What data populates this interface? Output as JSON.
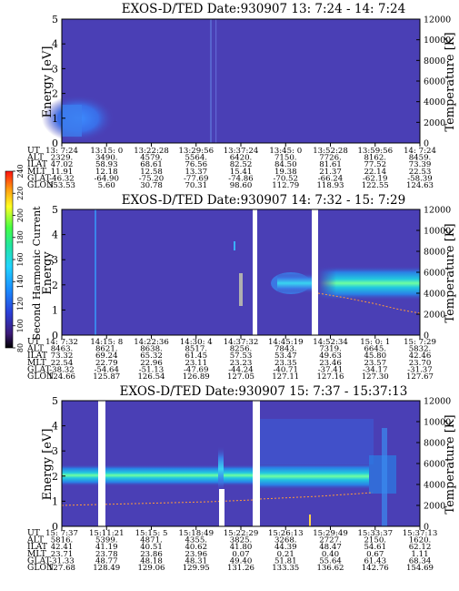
{
  "chart_data": [
    {
      "type": "heatmap",
      "title": "EXOS-D/TED   Date:930907  13: 7:24 - 14: 7:24",
      "ylabel": "Energy [eV]",
      "y2label": "Temperature [K]",
      "ylim": [
        0,
        5
      ],
      "y2lim": [
        0,
        12000
      ],
      "yticks": [
        "0",
        "1",
        "2",
        "3",
        "4",
        "5"
      ],
      "y2ticks": [
        "0",
        "2000",
        "4000",
        "6000",
        "8000",
        "10000",
        "12000"
      ],
      "row_labels": [
        "UT",
        "ALT",
        "ILAT",
        "MLT",
        "GLAT",
        "GLON"
      ],
      "columns": [
        [
          "13: 7:24",
          "2329.",
          "47.02",
          "11.91",
          "-46.32",
          "353.53"
        ],
        [
          "13:15: 0",
          "3490.",
          "58.93",
          "12.18",
          "-64.90",
          "5.60"
        ],
        [
          "13:22:28",
          "4579.",
          "68.61",
          "12.58",
          "-75.20",
          "30.78"
        ],
        [
          "13:29:56",
          "5564.",
          "76.56",
          "13.37",
          "-77.69",
          "70.31"
        ],
        [
          "13:37:24",
          "6420.",
          "82.52",
          "15.41",
          "-74.86",
          "98.60"
        ],
        [
          "13:45: 0",
          "7150.",
          "84.50",
          "19.38",
          "-70.52",
          "112.79"
        ],
        [
          "13:52:28",
          "7726.",
          "81.61",
          "21.37",
          "-66.24",
          "118.93"
        ],
        [
          "13:59:56",
          "8162.",
          "77.52",
          "22.14",
          "-62.19",
          "122.55"
        ],
        [
          "14: 7:24",
          "8459.",
          "73.39",
          "22.53",
          "-58.39",
          "124.63"
        ]
      ]
    },
    {
      "type": "heatmap",
      "title": "EXOS-D/TED   Date:930907  14: 7:32 - 15: 7:29",
      "ylabel": "Energy",
      "y2label": "Temperature [K]",
      "ylim": [
        0,
        5
      ],
      "y2lim": [
        0,
        12000
      ],
      "yticks": [
        "0",
        "1",
        "2",
        "3",
        "4",
        "5"
      ],
      "y2ticks": [
        "0",
        "2000",
        "4000",
        "6000",
        "8000",
        "10000",
        "12000"
      ],
      "colorbar": {
        "label": "Second Harmonic Current",
        "ticks": [
          "80",
          "100",
          "120",
          "140",
          "160",
          "180",
          "200",
          "220",
          "240"
        ]
      },
      "row_labels": [
        "UT",
        "ALT",
        "ILAT",
        "MLT",
        "GLAT",
        "GLON"
      ],
      "columns": [
        [
          "14: 7:32",
          "8463.",
          "73.32",
          "22.54",
          "-38.32",
          "124.66"
        ],
        [
          "14:15: 8",
          "8621.",
          "69.24",
          "22.79",
          "-54.64",
          "125.87"
        ],
        [
          "14:22:36",
          "8638.",
          "65.32",
          "22.96",
          "-51.13",
          "126.54"
        ],
        [
          "14:30: 4",
          "8517.",
          "61.45",
          "23.11",
          "-47.69",
          "126.89"
        ],
        [
          "14:37:32",
          "8256.",
          "57.53",
          "23.23",
          "-44.24",
          "127.05"
        ],
        [
          "14:45:19",
          "7843.",
          "53.47",
          "23.35",
          "-40.71",
          "127.11"
        ],
        [
          "14:52:34",
          "7319.",
          "49.63",
          "23.46",
          "-37.41",
          "127.16"
        ],
        [
          "15: 0: 1",
          "6645.",
          "45.80",
          "23.57",
          "-34.17",
          "127.30"
        ],
        [
          "15: 7:29",
          "5832.",
          "42.46",
          "23.70",
          "-31.37",
          "127.67"
        ]
      ]
    },
    {
      "type": "heatmap",
      "title": "EXOS-D/TED   Date:930907  15: 7:37 - 15:37:13",
      "ylabel": "Energy [eV]",
      "y2label": "Temperature [K]",
      "ylim": [
        0,
        5
      ],
      "y2lim": [
        0,
        12000
      ],
      "yticks": [
        "0",
        "1",
        "2",
        "3",
        "4",
        "5"
      ],
      "y2ticks": [
        "0",
        "2000",
        "4000",
        "6000",
        "8000",
        "10000",
        "12000"
      ],
      "row_labels": [
        "UT",
        "ALT",
        "ILAT",
        "MLT",
        "GLAT",
        "GLON"
      ],
      "columns": [
        [
          "15: 7:37",
          "5816.",
          "42.41",
          "23.71",
          "-31.33",
          "127.68"
        ],
        [
          "15:11:21",
          "5399.",
          "41.19",
          "23.78",
          "48.77",
          "128.49"
        ],
        [
          "15:15: 5",
          "4871.",
          "40.51",
          "23.86",
          "48.18",
          "129.06"
        ],
        [
          "15:18:49",
          "4355.",
          "40.62",
          "23.96",
          "48.31",
          "129.95"
        ],
        [
          "15:22:29",
          "3825.",
          "41.80",
          "0.07",
          "49.40",
          "131.26"
        ],
        [
          "15:26:13",
          "3268.",
          "44.39",
          "0.21",
          "51.81",
          "133.35"
        ],
        [
          "15:29:49",
          "2727.",
          "48.47",
          "0.40",
          "55.64",
          "136.62"
        ],
        [
          "15:33:37",
          "2150.",
          "54.61",
          "0.67",
          "61.43",
          "142.76"
        ],
        [
          "15:37:13",
          "1620.",
          "62.12",
          "1.11",
          "68.34",
          "154.69"
        ]
      ]
    }
  ]
}
